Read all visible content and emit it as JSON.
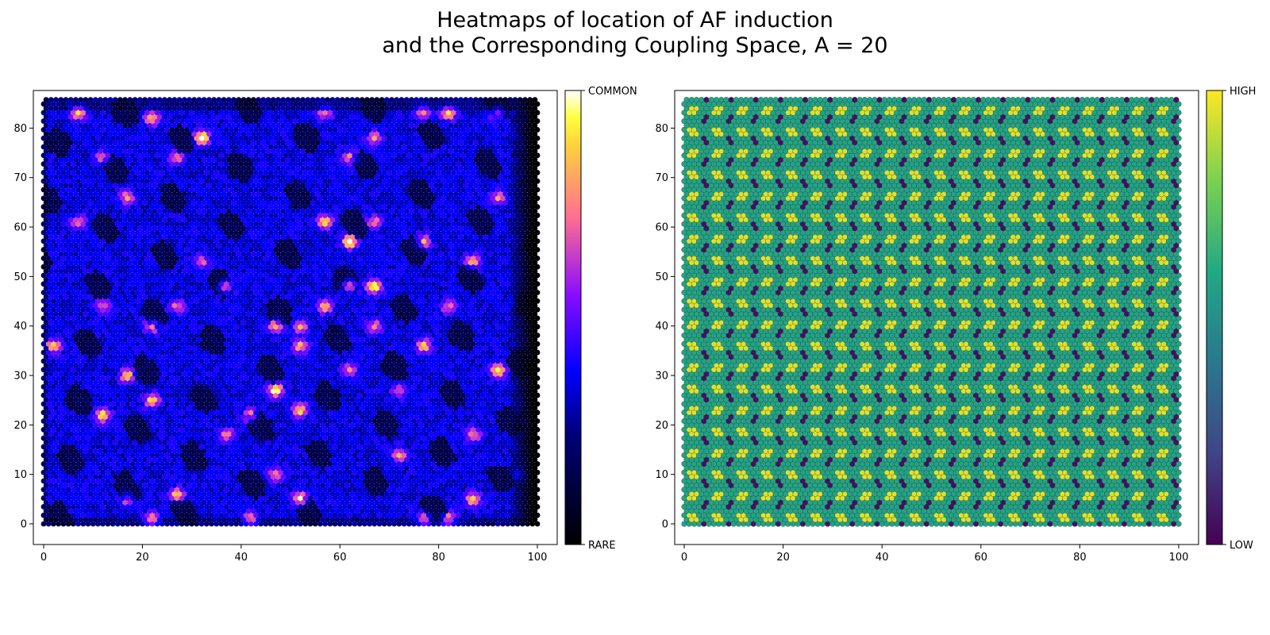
{
  "figure": {
    "title_line1": "Heatmaps of location of AF induction",
    "title_line2": "and the Corresponding Coupling Space, A = 20"
  },
  "chart_data": [
    {
      "type": "heatmap",
      "grid": "hexagonal",
      "title": "",
      "xlabel": "",
      "ylabel": "",
      "xlim": [
        0,
        100
      ],
      "ylim": [
        0,
        86
      ],
      "x_ticks": [
        "0",
        "20",
        "40",
        "60",
        "80",
        "100"
      ],
      "y_ticks": [
        "0",
        "10",
        "20",
        "30",
        "40",
        "50",
        "60",
        "70",
        "80"
      ],
      "colormap": "gnuplot2",
      "colorbar": {
        "low_label": "RARE",
        "high_label": "COMMON"
      },
      "colors": {
        "low": "#000000",
        "mid_low": "#0000ff",
        "mid": "#8a0cff",
        "mid_high": "#ff6e91",
        "high": "#ffff00",
        "top": "#ffffff"
      },
      "values": "approximate induction-frequency field: mostly low values (dark blue/black), with scattered hotspots; rightmost columns near zero; brightest peaks near (32,78), (67,48), (62,57), (47,27), (52,5), (92,31)"
    },
    {
      "type": "heatmap",
      "grid": "hexagonal",
      "title": "",
      "xlabel": "",
      "ylabel": "",
      "xlim": [
        0,
        100
      ],
      "ylim": [
        0,
        86
      ],
      "x_ticks": [
        "0",
        "20",
        "40",
        "60",
        "80",
        "100"
      ],
      "y_ticks": [
        "0",
        "10",
        "20",
        "30",
        "40",
        "50",
        "60",
        "70",
        "80"
      ],
      "colormap": "viridis",
      "colorbar": {
        "low_label": "LOW",
        "high_label": "HIGH"
      },
      "colors": {
        "low": "#440154",
        "mid": "#21918c",
        "high": "#fde725"
      },
      "values": "periodic coupling pattern repeating every 5 units in x and about 4.3 units in y: yellow clusters, teal surroundings, dark purple gaps"
    }
  ]
}
